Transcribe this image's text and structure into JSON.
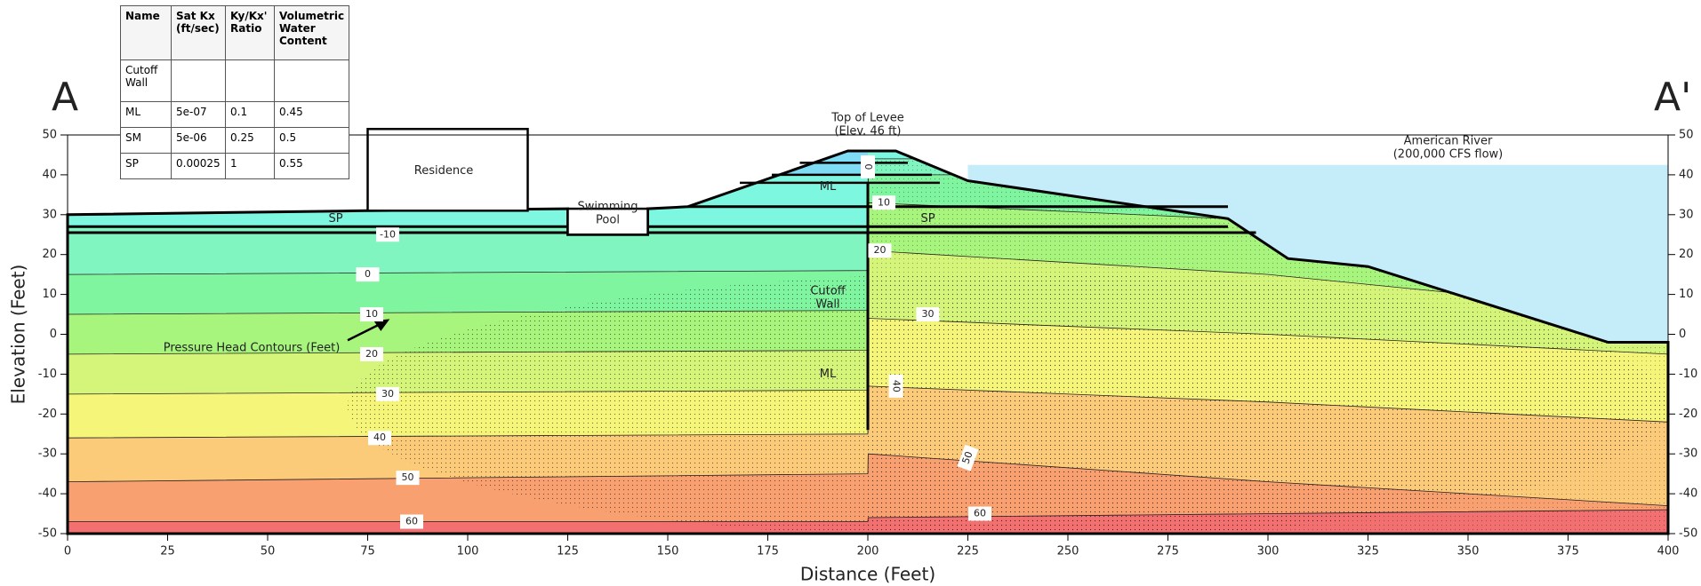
{
  "section_start": "A",
  "section_end": "A'",
  "x_axis": {
    "label": "Distance (Feet)",
    "lim": [
      0,
      400
    ],
    "ticks": [
      0,
      25,
      50,
      75,
      100,
      125,
      150,
      175,
      200,
      225,
      250,
      275,
      300,
      325,
      350,
      375,
      400
    ]
  },
  "y_axis": {
    "label": "Elevation (Feet)",
    "lim": [
      -50,
      50
    ],
    "ticks": [
      -50,
      -40,
      -30,
      -20,
      -10,
      0,
      10,
      20,
      30,
      40,
      50
    ]
  },
  "table": {
    "header": [
      "Name",
      "Sat Kx (ft/sec)",
      "Ky/Kx' Ratio",
      "Volumetric Water Content"
    ],
    "rows": [
      [
        "Cutoff Wall",
        "",
        "",
        ""
      ],
      [
        "ML",
        "5e-07",
        "0.1",
        "0.45"
      ],
      [
        "SM",
        "5e-06",
        "0.25",
        "0.5"
      ],
      [
        "SP",
        "0.00025",
        "1",
        "0.55"
      ]
    ]
  },
  "annotations": {
    "top_of_levee": [
      "Top of Levee",
      "(Elev. 46 ft)"
    ],
    "american_river": [
      "American River",
      "(200,000 CFS flow)"
    ],
    "residence": "Residence",
    "swimming_pool": [
      "Swimming",
      "Pool"
    ],
    "cutoff_wall": [
      "Cutoff",
      "Wall"
    ],
    "pressure_head": "Pressure Head Contours (Feet)",
    "materials": [
      "SP",
      "SP",
      "ML",
      "ML"
    ]
  },
  "contour_labels": [
    -10,
    0,
    10,
    20,
    30,
    40,
    50,
    60,
    0,
    10,
    20,
    30,
    40,
    50,
    60
  ]
}
